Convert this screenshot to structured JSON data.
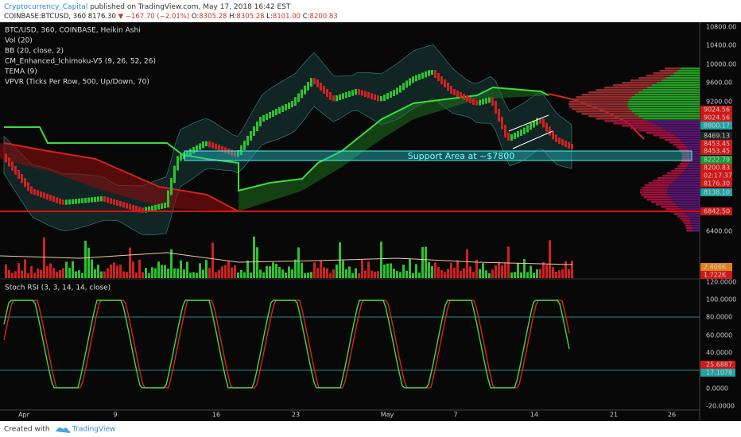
{
  "header": {
    "author": "Cryptocurrency_Capital",
    "published": " published on TradingView.com, May 17, 2018 16:42 EST",
    "symbol": "COINBASE:BTCUSD, 360",
    "last": "8176.30",
    "change": "▼ −167.70 (−2.01%)",
    "ohlc": [
      {
        "k": "O:",
        "v": "8305.28"
      },
      {
        "k": "H:",
        "v": "8305.28"
      },
      {
        "k": "L:",
        "v": "8101.00"
      },
      {
        "k": "C:",
        "v": "8200.83"
      }
    ]
  },
  "legend": [
    "BTC/USD, 360, COINBASE, Heikin Ashi",
    "Vol (20)",
    "BB (20, close, 2)",
    "CM_Enhanced_Ichimoku-V5 (9, 26, 52, 26)",
    "TEMA (9)",
    "VPVR (Ticks Per Row, 500, Up/Down, 70)"
  ],
  "annotation": "Support Area at ~$7800",
  "price_axis": [
    "10800.00",
    "10400.00",
    "10000.00",
    "9600.00",
    "9200.00",
    "6400.00"
  ],
  "price_markers": [
    "9024.56",
    "9024.56",
    "8800.17",
    "8469.13",
    "8453.45",
    "8453.45",
    "8222.79",
    "8200.83",
    "02:17:37",
    "8176.30",
    "8138.10",
    "6842.50",
    "2.406K",
    "1.722K"
  ],
  "rsi_title": "Stoch RSI (3, 3, 14, 14, close)",
  "rsi_axis": [
    "120.0000",
    "100.0000",
    "80.0000",
    "60.0000",
    "40.0000",
    "25.6887",
    "17.1078",
    "0.0000",
    "-20.0000"
  ],
  "dates": [
    "Apr",
    "9",
    "16",
    "23",
    "May",
    "7",
    "14",
    "21",
    "26"
  ],
  "footer": {
    "created": "Created with",
    "brand": "TradingView"
  }
}
